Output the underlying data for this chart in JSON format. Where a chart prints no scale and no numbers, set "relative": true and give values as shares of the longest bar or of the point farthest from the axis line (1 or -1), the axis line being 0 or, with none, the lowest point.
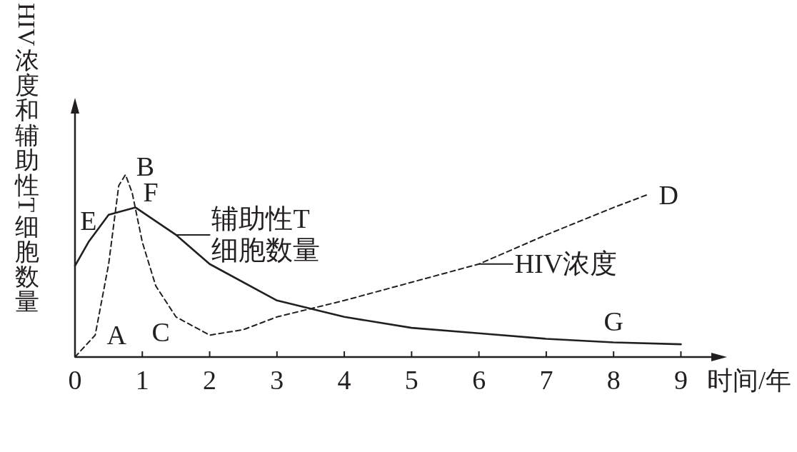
{
  "chart_data": {
    "type": "line",
    "relative": true,
    "xlabel": "时间/年",
    "ylabel": "HIV浓度和辅助性T细胞数量",
    "xlim": [
      0,
      9.6
    ],
    "xticks": [
      0,
      1,
      2,
      3,
      4,
      5,
      6,
      7,
      8,
      9
    ],
    "grid": false,
    "marker": "none",
    "series": [
      {
        "color": "#231f20",
        "line_style": "solid",
        "x": [
          0,
          0.2,
          0.5,
          0.9,
          1.5,
          2,
          3,
          4,
          5,
          6,
          7,
          8,
          9
        ],
        "values": [
          0.5,
          0.63,
          0.78,
          0.82,
          0.67,
          0.51,
          0.31,
          0.22,
          0.16,
          0.13,
          0.1,
          0.08,
          0.07
        ]
      },
      {
        "color": "#231f20",
        "line_style": "dashed",
        "x": [
          0,
          0.3,
          0.5,
          0.65,
          0.75,
          0.85,
          1,
          1.2,
          1.5,
          2,
          2.5,
          3,
          4,
          5,
          6,
          7,
          8,
          8.5
        ],
        "values": [
          0,
          0.12,
          0.51,
          0.94,
          1,
          0.9,
          0.63,
          0.39,
          0.22,
          0.12,
          0.15,
          0.22,
          0.31,
          0.41,
          0.51,
          0.67,
          0.82,
          0.89
        ]
      }
    ],
    "annotations": [
      {
        "text": "A",
        "x": 0.3,
        "y": 0.12
      },
      {
        "text": "B",
        "x": 0.75,
        "y": 1
      },
      {
        "text": "C",
        "x": 1.5,
        "y": 0.22
      },
      {
        "text": "D",
        "x": 8.5,
        "y": 0.89
      },
      {
        "text": "E",
        "x": 0.2,
        "y": 0.63
      },
      {
        "text": "F",
        "x": 0.9,
        "y": 0.82
      },
      {
        "text": "G",
        "x": 8,
        "y": 0.08
      },
      {
        "text": "辅助性T\n细胞数量",
        "x": 1.5,
        "y": 0.67
      },
      {
        "text": "HIV浓度",
        "x": 6,
        "y": 0.51
      }
    ]
  }
}
